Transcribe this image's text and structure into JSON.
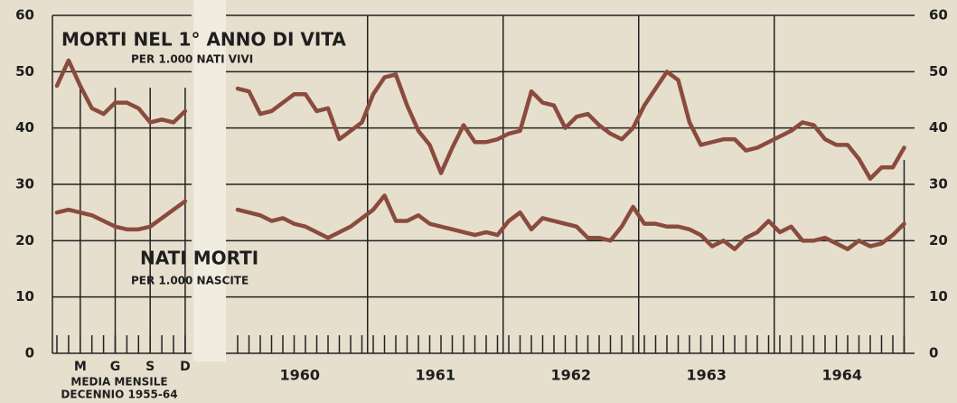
{
  "chart_data": [
    {
      "type": "line",
      "categories": [
        null,
        null,
        "M",
        null,
        null,
        "G",
        null,
        null,
        "S",
        null,
        null,
        "D"
      ],
      "xlabel": [
        "MEDIA MENSILE",
        "DECENNIO 1955-64"
      ],
      "series": [
        {
          "name": "MORTI NEL 1° ANNO DI VITA",
          "unit": "PER 1.000 NATI VIVI",
          "color": "#8a4b3e",
          "values": [
            47.5,
            52,
            47.5,
            43.5,
            42.5,
            44.5,
            44.5,
            43.5,
            41,
            41.5,
            41,
            43
          ]
        },
        {
          "name": "NATI MORTI",
          "unit": "PER 1.000 NASCITE",
          "color": "#8a4b3e",
          "values": [
            25,
            25.5,
            25,
            24.5,
            23.5,
            22.5,
            22,
            22,
            22.5,
            24,
            25.5,
            27
          ]
        }
      ],
      "ylim": [
        0,
        60
      ],
      "yticks": [
        0,
        10,
        20,
        30,
        40,
        50,
        60
      ],
      "grid": true
    },
    {
      "type": "line",
      "categories": [
        null,
        null,
        null,
        null,
        null,
        null,
        "1960",
        null,
        null,
        null,
        null,
        null,
        null,
        null,
        null,
        null,
        null,
        null,
        "1961",
        null,
        null,
        null,
        null,
        null,
        null,
        null,
        null,
        null,
        null,
        null,
        "1962",
        null,
        null,
        null,
        null,
        null,
        null,
        null,
        null,
        null,
        null,
        null,
        "1963",
        null,
        null,
        null,
        null,
        null,
        null,
        null,
        null,
        null,
        null,
        null,
        "1964",
        null,
        null,
        null,
        null,
        null
      ],
      "series": [
        {
          "color": "#8a4b3e",
          "values": [
            47,
            46.5,
            42.5,
            43,
            44.5,
            46,
            46,
            43,
            43.5,
            38,
            39.5,
            41,
            46,
            49,
            49.5,
            44,
            39.5,
            37,
            32,
            36.5,
            40.5,
            37.5,
            37.5,
            38,
            39,
            39.5,
            46.5,
            44.5,
            44,
            40,
            42,
            42.5,
            40.5,
            39,
            38,
            40,
            44,
            47,
            50,
            48.5,
            41,
            37,
            37.5,
            38,
            38,
            36,
            36.5,
            37.5,
            38.5,
            39.5,
            41,
            40.5,
            38,
            37,
            37,
            34.5,
            31,
            33,
            33,
            36.5
          ]
        },
        {
          "color": "#8a4b3e",
          "values": [
            25.5,
            25,
            24.5,
            23.5,
            24,
            23,
            22.5,
            21.5,
            20.5,
            21.5,
            22.5,
            24,
            25.5,
            28,
            23.5,
            23.5,
            24.5,
            23,
            22.5,
            22,
            21.5,
            21,
            21.5,
            21,
            23.5,
            25,
            22,
            24,
            23.5,
            23,
            22.5,
            20.5,
            20.5,
            20,
            22.5,
            26,
            23,
            23,
            22.5,
            22.5,
            22,
            21,
            19,
            20,
            18.5,
            20.5,
            21.5,
            23.5,
            21.5,
            22.5,
            20,
            20,
            20.5,
            19.5,
            18.5,
            20,
            19,
            19.5,
            21,
            23
          ]
        }
      ],
      "ylim": [
        0,
        60
      ],
      "yticks": [
        0,
        10,
        20,
        30,
        40,
        50,
        60
      ],
      "grid": true
    }
  ]
}
